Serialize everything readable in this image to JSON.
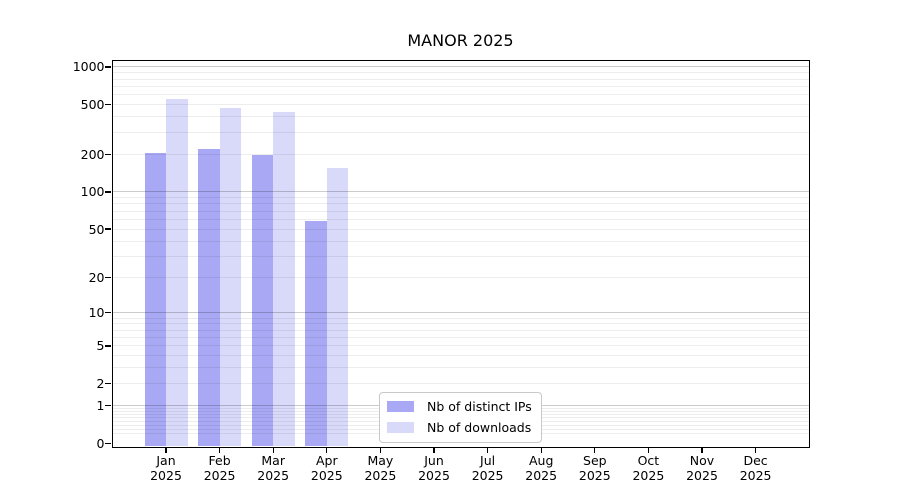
{
  "chart_data": {
    "type": "bar",
    "title": "MANOR 2025",
    "categories": [
      "Jan 2025",
      "Feb 2025",
      "Mar 2025",
      "Apr 2025",
      "May 2025",
      "Jun 2025",
      "Jul 2025",
      "Aug 2025",
      "Sep 2025",
      "Oct 2025",
      "Nov 2025",
      "Dec 2025"
    ],
    "series": [
      {
        "name": "Nb of distinct IPs",
        "color": "#a8a8f4",
        "values": [
          205,
          222,
          197,
          58,
          null,
          null,
          null,
          null,
          null,
          null,
          null,
          null
        ]
      },
      {
        "name": "Nb of downloads",
        "color": "#d9d9fa",
        "values": [
          560,
          472,
          437,
          155,
          null,
          null,
          null,
          null,
          null,
          null,
          null,
          null
        ]
      }
    ],
    "xlabel": "",
    "ylabel": "",
    "y_scale": "log10(1+x)",
    "ylim": [
      0,
      1140
    ],
    "y_axis_ticks": [
      1000,
      500,
      200,
      100,
      50,
      20,
      10,
      5,
      2,
      1,
      0
    ],
    "y_gridlines_major": [
      1,
      10,
      100,
      1000
    ],
    "y_gridlines_minor": [
      0.2,
      0.3,
      0.4,
      0.5,
      0.6,
      0.7,
      0.8,
      0.9,
      2,
      3,
      4,
      5,
      6,
      7,
      8,
      9,
      20,
      30,
      40,
      50,
      60,
      70,
      80,
      90,
      200,
      300,
      400,
      500,
      600,
      700,
      800,
      900
    ],
    "grid": true,
    "legend_position": "inside-bottom-center"
  },
  "colors": {
    "spine": "#000000",
    "background": "#ffffff",
    "grid_minor": "rgba(0,0,0,0.07)",
    "grid_major": "rgba(0,0,0,0.20)",
    "legend_border": "#c9c9c9"
  }
}
